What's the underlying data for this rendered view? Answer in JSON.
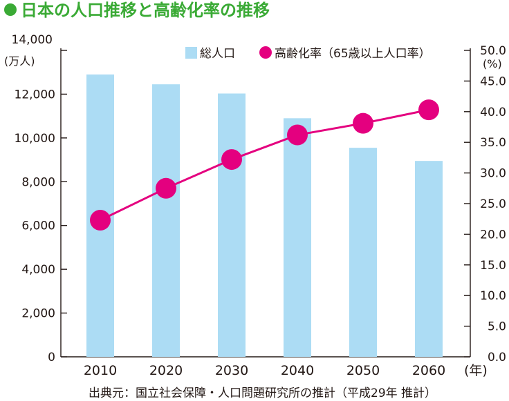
{
  "title": "日本の人口推移と高齢化率の推移",
  "source": "出典元：国立社会保障・人口問題研究所の推計（平成29年 推計）",
  "chart_data": {
    "type": "bar",
    "categories": [
      "2010",
      "2020",
      "2030",
      "2040",
      "2050",
      "2060"
    ],
    "x_unit": "(年)",
    "series": [
      {
        "name": "総人口",
        "type": "bar",
        "axis": "left",
        "color": "#acdcf4",
        "values": [
          12900,
          12450,
          12030,
          10900,
          9550,
          8950
        ]
      },
      {
        "name": "高齢化率（65歳以上人口率）",
        "type": "line",
        "axis": "right",
        "color": "#e4007f",
        "values": [
          22.3,
          27.5,
          32.2,
          36.2,
          38.1,
          40.3
        ]
      }
    ],
    "left_axis": {
      "unit": "(万人)",
      "ylim": [
        0,
        14000
      ],
      "ticks": [
        "0",
        "2,000",
        "4,000",
        "6,000",
        "8,000",
        "10,000",
        "12,000",
        "14,000"
      ],
      "tick_values": [
        0,
        2000,
        4000,
        6000,
        8000,
        10000,
        12000,
        14000
      ]
    },
    "right_axis": {
      "unit": "(%)",
      "ylim": [
        0,
        50
      ],
      "ticks": [
        "0.0",
        "5.0",
        "10.0",
        "15.0",
        "20.0",
        "25.0",
        "30.0",
        "35.0",
        "40.0",
        "45.0",
        "50.0"
      ],
      "tick_values": [
        0,
        5,
        10,
        15,
        20,
        25,
        30,
        35,
        40,
        45,
        50
      ]
    },
    "legend": {
      "position": "top-right",
      "bar_label": "総人口",
      "line_label": "高齢化率（65歳以上人口率）"
    },
    "grid": false
  }
}
